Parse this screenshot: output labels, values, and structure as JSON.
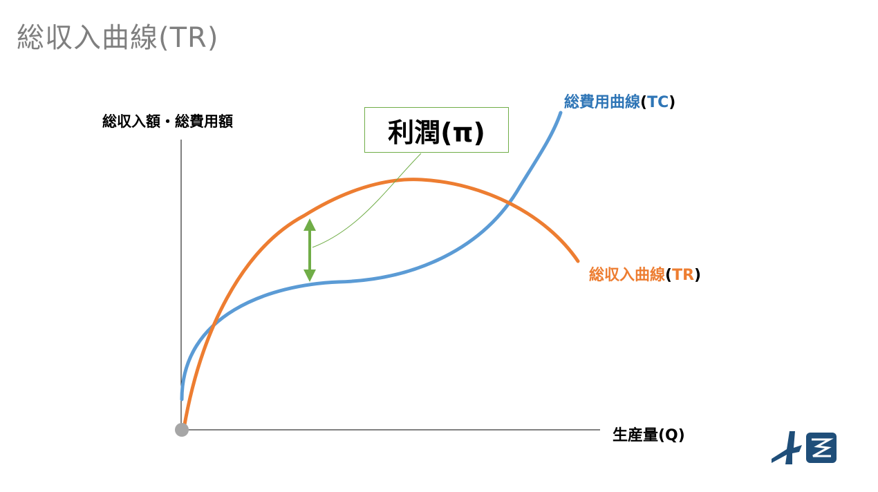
{
  "slide": {
    "title": "総収入曲線(TR)"
  },
  "axes": {
    "y_label": "総収入額・総費用額",
    "x_label": "生産量(Q)"
  },
  "curves": {
    "tc": {
      "name": "総費用曲線",
      "abbr_open": "(",
      "abbr": "TC",
      "abbr_close": ")",
      "color": "#5b9bd5"
    },
    "tr": {
      "name": "総収入曲線",
      "abbr_open": "(",
      "abbr": "TR",
      "abbr_close": ")",
      "color": "#ed7d31"
    }
  },
  "callout": {
    "label": "利潤(π)",
    "color": "#70ad47"
  },
  "logo": {
    "icon": "brand-logo-icon",
    "color": "#1f4e79"
  }
}
